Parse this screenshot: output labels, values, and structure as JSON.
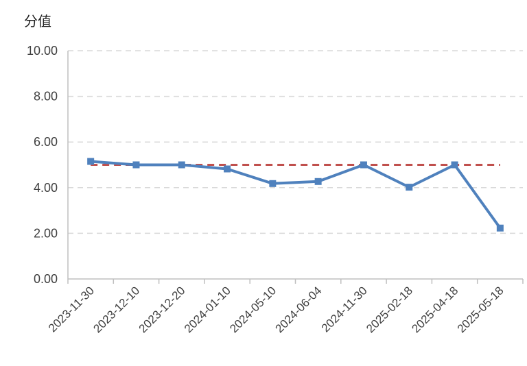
{
  "chart_data": {
    "type": "line",
    "title": "",
    "xlabel": "",
    "ylabel": "分值",
    "ylim": [
      0,
      10
    ],
    "yticks": [
      "0.00",
      "2.00",
      "4.00",
      "6.00",
      "8.00",
      "10.00"
    ],
    "grid": true,
    "legend": "none",
    "categories": [
      "2023-11-30",
      "2023-12-10",
      "2023-12-20",
      "2024-01-10",
      "2024-05-10",
      "2024-06-04",
      "2024-11-30",
      "2025-02-18",
      "2025-04-18",
      "2025-05-18"
    ],
    "series": [
      {
        "style": "solid-square-markers",
        "color": "#4f81bd",
        "values": [
          5.15,
          5.0,
          5.0,
          4.82,
          4.18,
          4.27,
          5.0,
          4.02,
          5.0,
          2.23
        ]
      },
      {
        "style": "dashed",
        "color": "#c0504d",
        "values": [
          5,
          5,
          5,
          5,
          5,
          5,
          5,
          5,
          5,
          5
        ]
      }
    ]
  }
}
